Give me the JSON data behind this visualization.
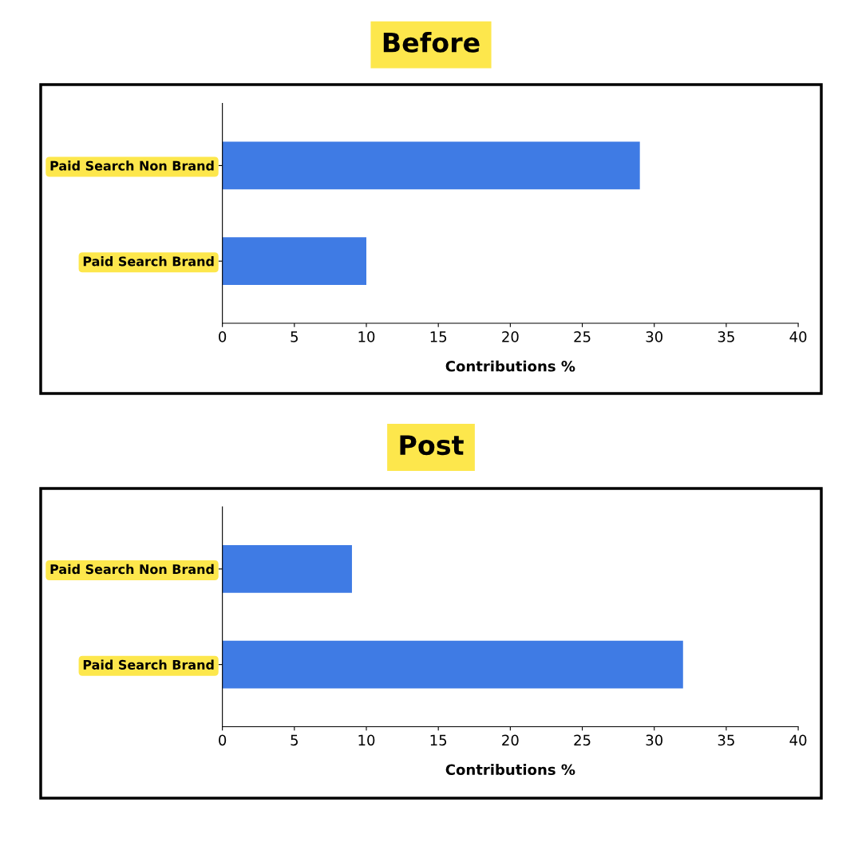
{
  "chart_data": [
    {
      "type": "bar",
      "orientation": "horizontal",
      "title": "Before",
      "categories": [
        "Paid Search Non Brand",
        "Paid Search Brand"
      ],
      "values": [
        29,
        10
      ],
      "color": "#3f7be4",
      "xlabel": "Contributions %",
      "xlim": [
        0,
        40
      ],
      "xticks": [
        0,
        5,
        10,
        15,
        20,
        25,
        30,
        35,
        40
      ],
      "grid": false,
      "legend": false
    },
    {
      "type": "bar",
      "orientation": "horizontal",
      "title": "Post",
      "categories": [
        "Paid Search Non Brand",
        "Paid Search Brand"
      ],
      "values": [
        9,
        32
      ],
      "color": "#3f7be4",
      "xlabel": "Contributions %",
      "xlim": [
        0,
        40
      ],
      "xticks": [
        0,
        5,
        10,
        15,
        20,
        25,
        30,
        35,
        40
      ],
      "grid": false,
      "legend": false
    }
  ]
}
